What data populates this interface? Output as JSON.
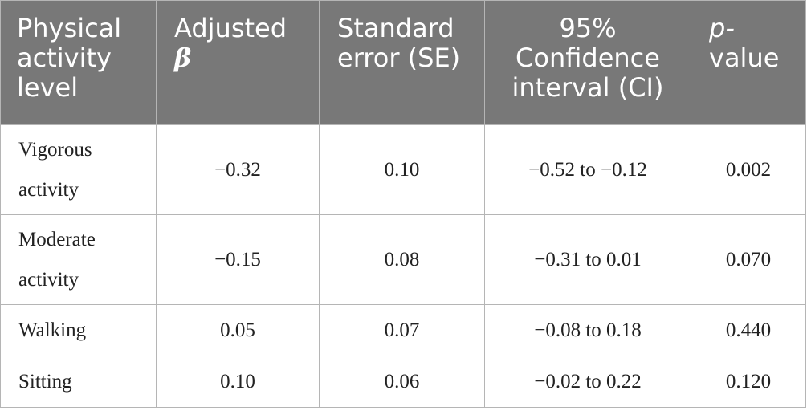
{
  "table": {
    "headers": [
      [
        "Physical",
        "activity",
        "level"
      ],
      [
        "Adjusted",
        "β"
      ],
      [
        "Standard",
        "error (SE)"
      ],
      [
        "95%",
        "Confidence",
        "interval (CI)"
      ],
      [
        "p-",
        "value"
      ]
    ],
    "rows": [
      {
        "label_lines": [
          "Vigorous",
          "activity"
        ],
        "beta": "−0.32",
        "se": "0.10",
        "ci": "−0.52 to −0.12",
        "p": "0.002"
      },
      {
        "label_lines": [
          "Moderate",
          "activity"
        ],
        "beta": "−0.15",
        "se": "0.08",
        "ci": "−0.31 to 0.01",
        "p": "0.070"
      },
      {
        "label_lines": [
          "Walking"
        ],
        "beta": "0.05",
        "se": "0.07",
        "ci": "−0.08 to 0.18",
        "p": "0.440"
      },
      {
        "label_lines": [
          "Sitting"
        ],
        "beta": "0.10",
        "se": "0.06",
        "ci": "−0.02 to 0.22",
        "p": "0.120"
      }
    ]
  },
  "colors": {
    "header_bg": "#787878",
    "header_text": "#ffffff",
    "border": "#b5b5b5",
    "body_text": "#222222"
  }
}
